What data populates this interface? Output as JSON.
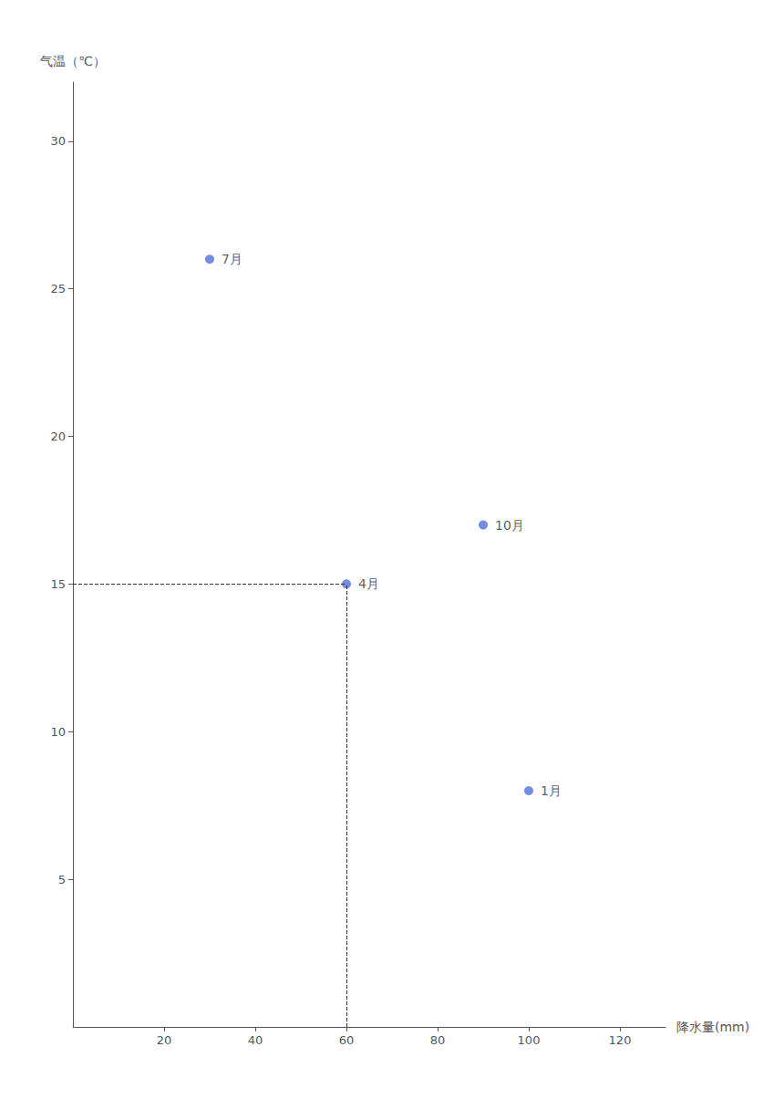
{
  "chart_data": {
    "type": "scatter",
    "xlabel": "降水量(mm)",
    "ylabel": "气温（℃）",
    "x": [
      30,
      60,
      90,
      100
    ],
    "values": [
      26,
      15,
      17,
      8
    ],
    "point_labels": [
      "7月",
      "4月",
      "10月",
      "1月"
    ],
    "marker": "circle",
    "xlim": [
      0,
      130
    ],
    "ylim": [
      0,
      32
    ],
    "xticks": [
      20,
      40,
      60,
      80,
      100,
      120
    ],
    "yticks": [
      5,
      10,
      15,
      20,
      25,
      30
    ],
    "grid": false,
    "annotations": [
      {
        "x": 60,
        "y": 15,
        "line_style": "dashed"
      }
    ]
  }
}
